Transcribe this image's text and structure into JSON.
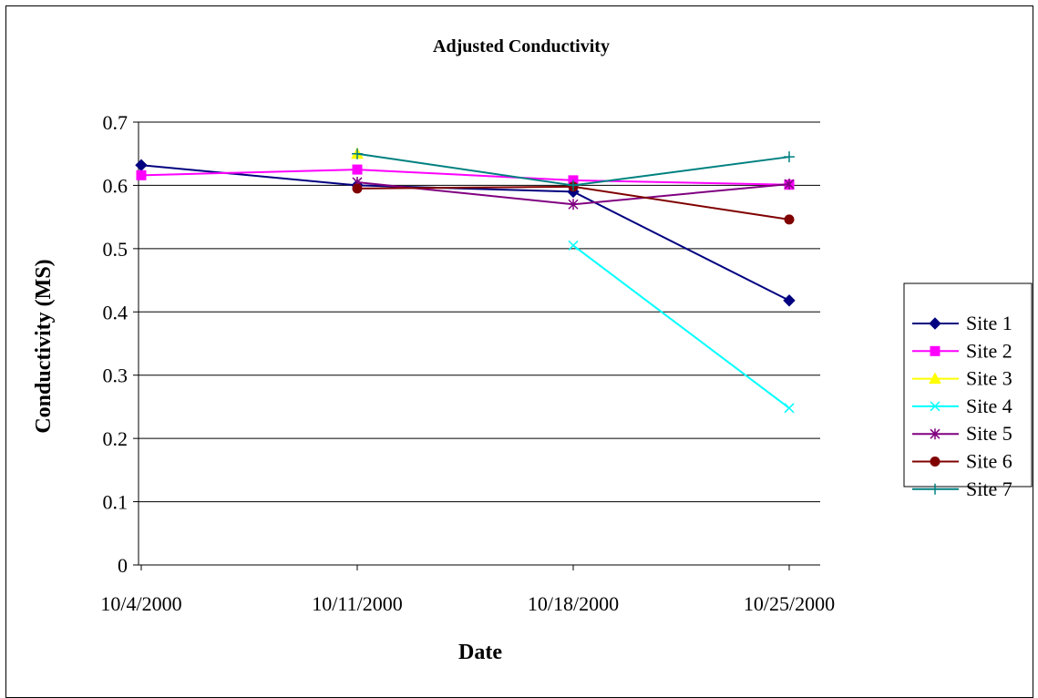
{
  "chart_data": {
    "type": "line",
    "title": "Adjusted Conductivity",
    "xlabel": "Date",
    "ylabel": "Conductivity  (MS)",
    "x": [
      "10/4/2000",
      "10/11/2000",
      "10/18/2000",
      "10/25/2000"
    ],
    "ylim": [
      0,
      0.7
    ],
    "yticks": [
      "0",
      "0.1",
      "0.2",
      "0.3",
      "0.4",
      "0.5",
      "0.6",
      "0.7"
    ],
    "grid": true,
    "legend_position": "right",
    "series": [
      {
        "name": "Site 1",
        "color": "#000080",
        "marker": "diamond",
        "values": [
          0.632,
          0.6,
          0.59,
          0.418
        ]
      },
      {
        "name": "Site 2",
        "color": "#FF00FF",
        "marker": "square",
        "values": [
          0.616,
          0.625,
          0.608,
          0.601
        ]
      },
      {
        "name": "Site 3",
        "color": "#FFFF00",
        "marker": "triangle",
        "values": [
          null,
          0.65,
          null,
          null
        ]
      },
      {
        "name": "Site 4",
        "color": "#00FFFF",
        "marker": "x",
        "values": [
          null,
          null,
          0.505,
          0.248
        ]
      },
      {
        "name": "Site 5",
        "color": "#800080",
        "marker": "star",
        "values": [
          null,
          0.605,
          0.57,
          0.602
        ]
      },
      {
        "name": "Site 6",
        "color": "#800000",
        "marker": "circle",
        "values": [
          null,
          0.595,
          0.598,
          0.546
        ]
      },
      {
        "name": "Site 7",
        "color": "#008080",
        "marker": "plus",
        "values": [
          null,
          0.65,
          0.6,
          0.645
        ]
      }
    ]
  }
}
